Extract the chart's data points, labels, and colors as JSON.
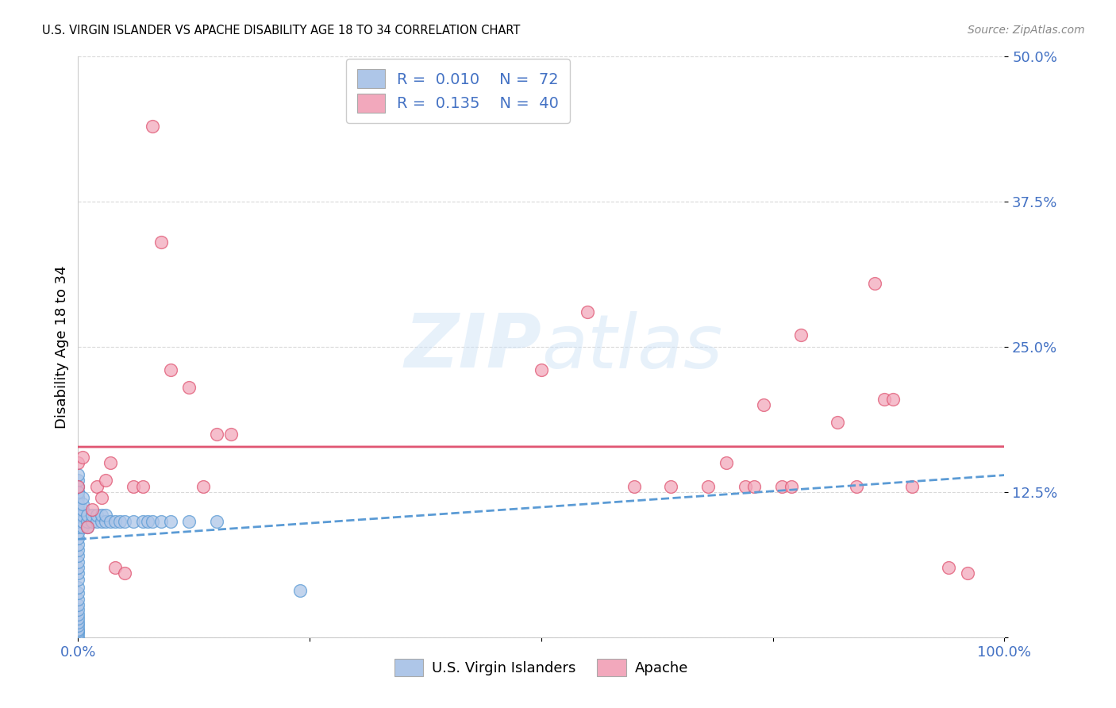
{
  "title": "U.S. VIRGIN ISLANDER VS APACHE DISABILITY AGE 18 TO 34 CORRELATION CHART",
  "source": "Source: ZipAtlas.com",
  "ylabel": "Disability Age 18 to 34",
  "xlabel": "",
  "xlim": [
    0,
    1.0
  ],
  "ylim": [
    0,
    0.5
  ],
  "yticks": [
    0.0,
    0.125,
    0.25,
    0.375,
    0.5
  ],
  "ytick_labels": [
    "",
    "12.5%",
    "25.0%",
    "37.5%",
    "50.0%"
  ],
  "xticks": [
    0.0,
    0.25,
    0.5,
    0.75,
    1.0
  ],
  "xtick_labels": [
    "0.0%",
    "",
    "",
    "",
    "100.0%"
  ],
  "blue_R": 0.01,
  "blue_N": 72,
  "pink_R": 0.135,
  "pink_N": 40,
  "blue_color": "#aec6e8",
  "pink_color": "#f2a8bc",
  "trend_blue_color": "#5b9bd5",
  "trend_pink_color": "#e05572",
  "legend_text_color": "#4472c4",
  "axis_color": "#4472c4",
  "watermark_color": "#d0e4f7",
  "grid_color": "#d0d0d0",
  "blue_x": [
    0.0,
    0.0,
    0.0,
    0.0,
    0.0,
    0.0,
    0.0,
    0.0,
    0.0,
    0.0,
    0.0,
    0.0,
    0.0,
    0.0,
    0.0,
    0.0,
    0.0,
    0.0,
    0.0,
    0.0,
    0.0,
    0.0,
    0.0,
    0.0,
    0.0,
    0.0,
    0.0,
    0.0,
    0.0,
    0.0,
    0.0,
    0.0,
    0.0,
    0.0,
    0.0,
    0.0,
    0.0,
    0.0,
    0.0,
    0.0,
    0.0,
    0.0,
    0.005,
    0.005,
    0.005,
    0.005,
    0.005,
    0.005,
    0.01,
    0.01,
    0.01,
    0.015,
    0.015,
    0.02,
    0.02,
    0.025,
    0.025,
    0.03,
    0.03,
    0.035,
    0.04,
    0.045,
    0.05,
    0.06,
    0.07,
    0.075,
    0.08,
    0.09,
    0.1,
    0.12,
    0.15,
    0.24
  ],
  "blue_y": [
    0.0,
    0.003,
    0.005,
    0.007,
    0.01,
    0.013,
    0.016,
    0.02,
    0.024,
    0.028,
    0.033,
    0.038,
    0.043,
    0.05,
    0.055,
    0.06,
    0.065,
    0.07,
    0.075,
    0.08,
    0.085,
    0.09,
    0.095,
    0.1,
    0.105,
    0.11,
    0.115,
    0.12,
    0.125,
    0.13,
    0.135,
    0.14,
    0.1,
    0.105,
    0.11,
    0.115,
    0.12,
    0.125,
    0.1,
    0.105,
    0.11,
    0.115,
    0.095,
    0.1,
    0.105,
    0.11,
    0.115,
    0.12,
    0.095,
    0.1,
    0.105,
    0.1,
    0.105,
    0.1,
    0.105,
    0.1,
    0.105,
    0.1,
    0.105,
    0.1,
    0.1,
    0.1,
    0.1,
    0.1,
    0.1,
    0.1,
    0.1,
    0.1,
    0.1,
    0.1,
    0.1,
    0.04
  ],
  "pink_x": [
    0.0,
    0.0,
    0.005,
    0.01,
    0.015,
    0.02,
    0.025,
    0.03,
    0.035,
    0.04,
    0.05,
    0.06,
    0.07,
    0.08,
    0.09,
    0.1,
    0.12,
    0.135,
    0.15,
    0.165,
    0.5,
    0.55,
    0.6,
    0.64,
    0.68,
    0.7,
    0.72,
    0.73,
    0.74,
    0.76,
    0.77,
    0.78,
    0.82,
    0.84,
    0.86,
    0.87,
    0.88,
    0.9,
    0.94,
    0.96
  ],
  "pink_y": [
    0.13,
    0.15,
    0.155,
    0.095,
    0.11,
    0.13,
    0.12,
    0.135,
    0.15,
    0.06,
    0.055,
    0.13,
    0.13,
    0.44,
    0.34,
    0.23,
    0.215,
    0.13,
    0.175,
    0.175,
    0.23,
    0.28,
    0.13,
    0.13,
    0.13,
    0.15,
    0.13,
    0.13,
    0.2,
    0.13,
    0.13,
    0.26,
    0.185,
    0.13,
    0.305,
    0.205,
    0.205,
    0.13,
    0.06,
    0.055
  ]
}
